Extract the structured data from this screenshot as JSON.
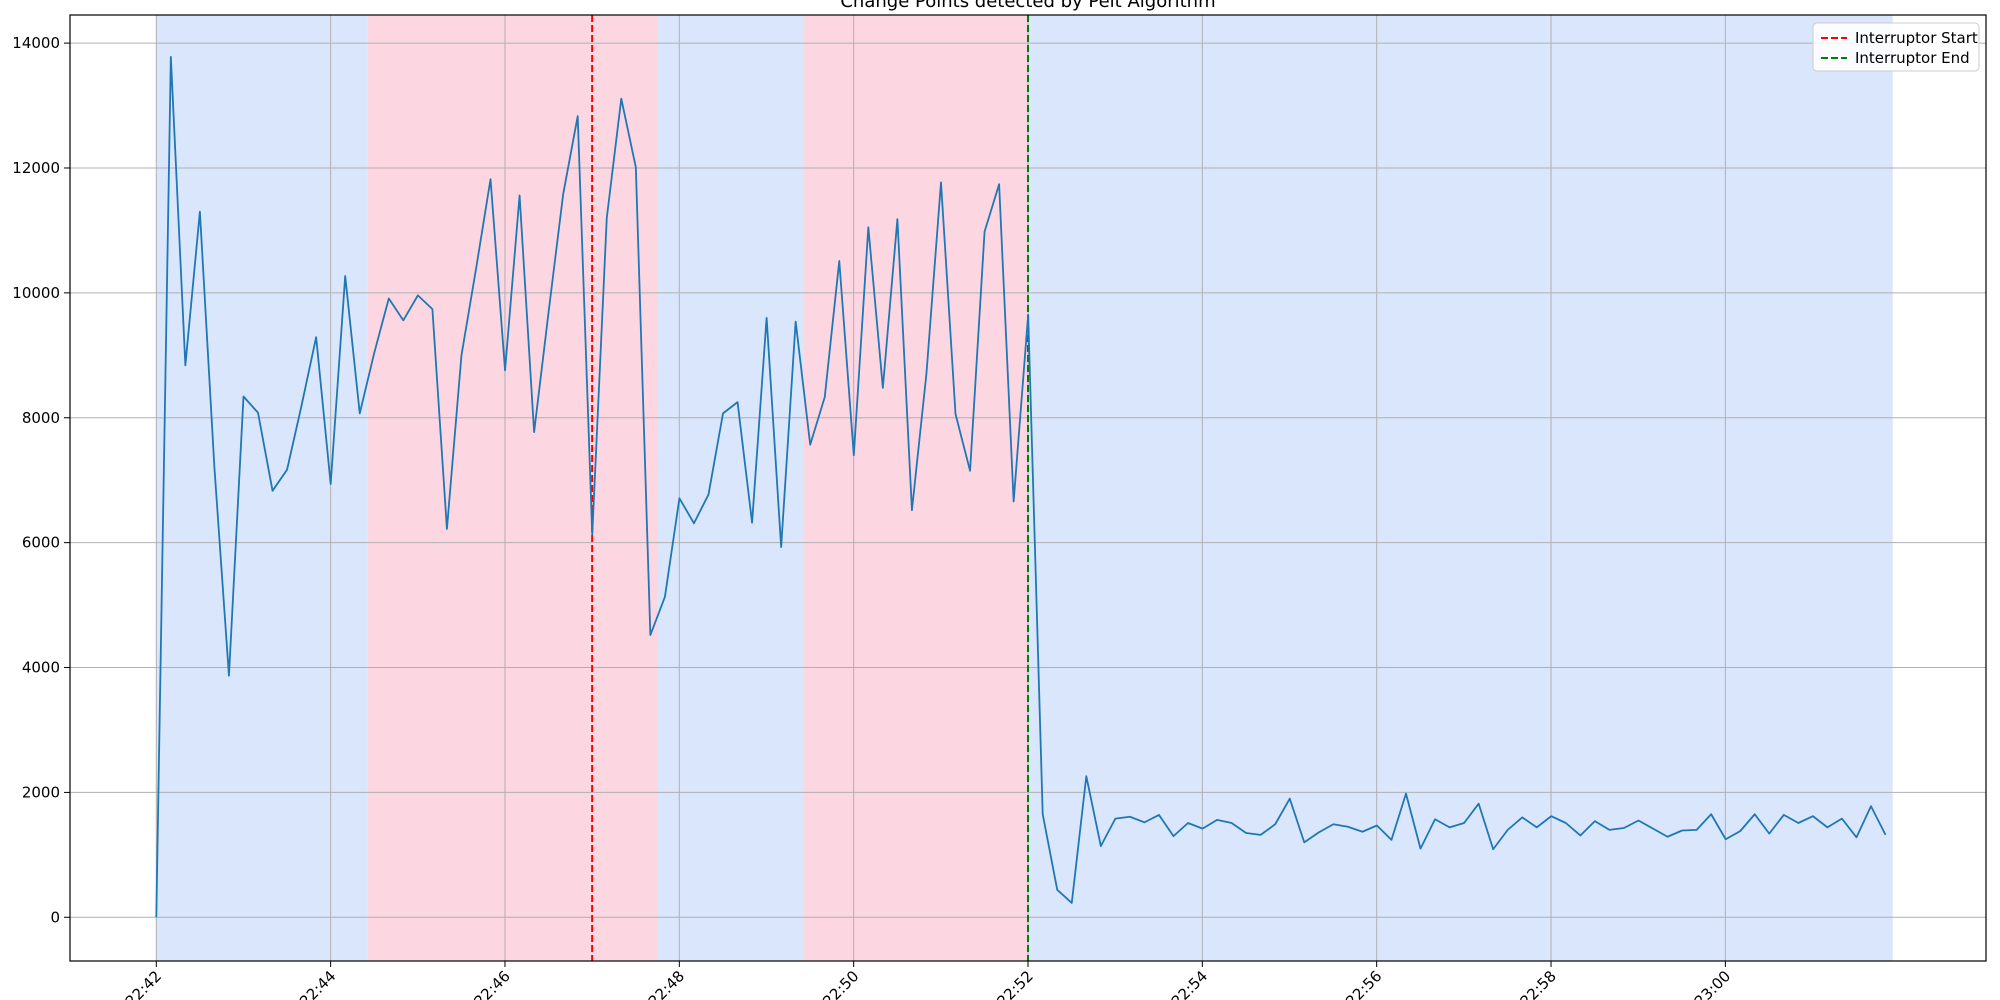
{
  "chart_data": {
    "type": "line",
    "title": "Change Points detected by Pelt Algorithm",
    "xlabel": "",
    "ylabel": "",
    "x_start": "22:42",
    "x_step_minutes": 0.1667,
    "xlim_minutes": [
      -0.99,
      20.99
    ],
    "ylim": [
      -700,
      14450
    ],
    "x_ticks": [
      {
        "minute": 0,
        "label": "22:42"
      },
      {
        "minute": 2,
        "label": "22:44"
      },
      {
        "minute": 4,
        "label": "22:46"
      },
      {
        "minute": 6,
        "label": "22:48"
      },
      {
        "minute": 8,
        "label": "22:50"
      },
      {
        "minute": 10,
        "label": "22:52"
      },
      {
        "minute": 12,
        "label": "22:54"
      },
      {
        "minute": 14,
        "label": "22:56"
      },
      {
        "minute": 16,
        "label": "22:58"
      },
      {
        "minute": 18,
        "label": "23:00"
      }
    ],
    "y_ticks": [
      0,
      2000,
      4000,
      6000,
      8000,
      10000,
      12000,
      14000
    ],
    "grid": true,
    "series": [
      {
        "name": "",
        "color": "#1f77b4",
        "values": [
          0,
          13780,
          8840,
          11300,
          7200,
          3870,
          8340,
          8080,
          6830,
          7170,
          8200,
          9290,
          6940,
          10270,
          8070,
          9040,
          9910,
          9560,
          9960,
          9740,
          6220,
          9000,
          10380,
          11820,
          8760,
          11560,
          7770,
          9700,
          11580,
          12830,
          6130,
          11200,
          13110,
          12010,
          4520,
          5130,
          6710,
          6310,
          6770,
          8070,
          8250,
          6320,
          9600,
          5930,
          9540,
          7570,
          8330,
          10510,
          7400,
          11050,
          8480,
          11180,
          6520,
          8710,
          11770,
          8060,
          7150,
          10980,
          11740,
          6660,
          9650,
          1650,
          440,
          230,
          2260,
          1140,
          1580,
          1610,
          1520,
          1640,
          1300,
          1510,
          1420,
          1560,
          1510,
          1350,
          1320,
          1490,
          1900,
          1200,
          1360,
          1490,
          1450,
          1370,
          1470,
          1240,
          1980,
          1100,
          1570,
          1440,
          1510,
          1820,
          1090,
          1400,
          1600,
          1440,
          1620,
          1510,
          1310,
          1540,
          1400,
          1430,
          1550,
          1420,
          1290,
          1390,
          1400,
          1650,
          1250,
          1380,
          1650,
          1340,
          1640,
          1510,
          1620,
          1440,
          1580,
          1280,
          1780,
          1320
        ]
      }
    ],
    "regions": [
      {
        "start_minute": 0,
        "end_minute": 2.42,
        "color": "#dae6fb"
      },
      {
        "start_minute": 2.42,
        "end_minute": 5.75,
        "color": "#fcd7e2"
      },
      {
        "start_minute": 5.75,
        "end_minute": 7.42,
        "color": "#dae6fb"
      },
      {
        "start_minute": 7.42,
        "end_minute": 10,
        "color": "#fcd7e2"
      },
      {
        "start_minute": 10,
        "end_minute": 19.92,
        "color": "#dae6fb"
      }
    ],
    "vlines": [
      {
        "minute": 5,
        "color": "#ff0000",
        "label": "Interruptor Start"
      },
      {
        "minute": 10,
        "color": "#008000",
        "label": "Interruptor End"
      }
    ],
    "legend": {
      "placement": "top-right"
    }
  }
}
